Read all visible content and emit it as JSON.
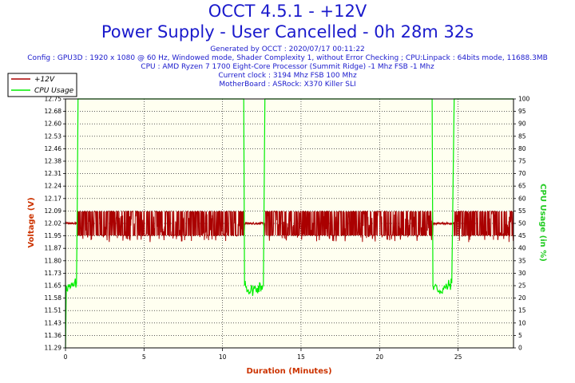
{
  "header": {
    "title": "OCCT 4.5.1 - +12V",
    "subtitle": "Power Supply - User Cancelled - 0h 28m 32s",
    "generated": "Generated by OCCT : 2020/07/17 00:11:22",
    "config": "Config : GPU3D : 1920 x 1080 @ 60 Hz, Windowed mode, Shader Complexity 1, without Error Checking ; CPU:Linpack : 64bits mode, 11688.3MB",
    "cpu": "CPU : AMD Ryzen 7 1700 Eight-Core Processor (Summit Ridge) -1 Mhz FSB -1 Mhz",
    "clock": "Current clock : 3194 Mhz FSB 100 Mhz",
    "motherboard": "MotherBoard : ASRock: X370 Killer SLI"
  },
  "colors": {
    "voltage": "#aa0000",
    "cpu_usage": "#00ee00",
    "plot_bg": "#fffff0",
    "text_blue": "#1a1acc",
    "axis_label": "#cc3300",
    "cpu_axis_label": "#22cc22"
  },
  "chart_data": {
    "type": "line",
    "xlabel": "Duration (Minutes)",
    "ylabel": "Voltage (V)",
    "y2label": "CPU Usage (in %)",
    "xlim": [
      0,
      28.53
    ],
    "ylim": [
      11.29,
      12.75
    ],
    "y2lim": [
      0,
      100
    ],
    "x_ticks": [
      0,
      5,
      10,
      15,
      20,
      25
    ],
    "y_ticks": [
      "11.29",
      "11.36",
      "11.43",
      "11.51",
      "11.58",
      "11.65",
      "11.73",
      "11.80",
      "11.87",
      "11.95",
      "12.02",
      "12.09",
      "12.17",
      "12.24",
      "12.31",
      "12.38",
      "12.46",
      "12.53",
      "12.60",
      "12.68",
      "12.75"
    ],
    "y2_ticks": [
      0,
      5,
      10,
      15,
      20,
      25,
      30,
      35,
      40,
      45,
      50,
      55,
      60,
      65,
      70,
      75,
      80,
      85,
      90,
      95,
      100
    ],
    "grid": true,
    "legend_position": "top-left",
    "series": [
      {
        "name": "+12V",
        "axis": "left",
        "baseline": 12.02,
        "noise_band": [
          11.95,
          12.09
        ],
        "low_spikes_to": 11.91,
        "steady_segments": [
          [
            0,
            0.75
          ],
          [
            11.4,
            12.7
          ],
          [
            23.4,
            24.75
          ]
        ],
        "end": 28.53
      },
      {
        "name": "CPU Usage",
        "axis": "right",
        "points": [
          [
            0,
            0
          ],
          [
            0.05,
            25
          ],
          [
            0.3,
            24
          ],
          [
            0.55,
            25
          ],
          [
            0.7,
            26
          ],
          [
            0.75,
            55
          ],
          [
            0.8,
            100
          ],
          [
            11.35,
            100
          ],
          [
            11.4,
            25
          ],
          [
            11.8,
            23
          ],
          [
            12.2,
            24
          ],
          [
            12.6,
            25
          ],
          [
            12.7,
            100
          ],
          [
            23.35,
            100
          ],
          [
            23.4,
            25
          ],
          [
            23.8,
            23
          ],
          [
            24.2,
            24
          ],
          [
            24.6,
            26
          ],
          [
            24.75,
            100
          ],
          [
            28.53,
            100
          ]
        ]
      }
    ]
  }
}
